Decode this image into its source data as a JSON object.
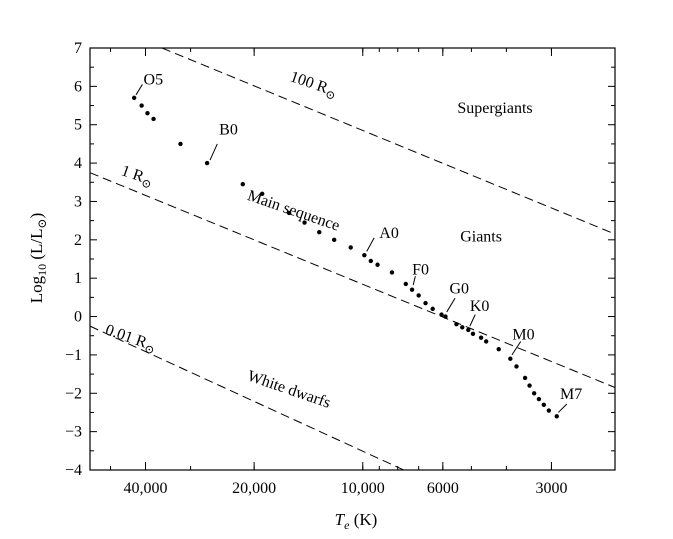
{
  "chart_data": {
    "type": "scatter",
    "title": "",
    "xlabel": "T",
    "xlabel_sub": "e",
    "xlabel_unit": " (K)",
    "ylabel": "Log",
    "ylabel_sub": "10",
    "ylabel_unit": " (L/L",
    "ylabel_sun": "⊙",
    "ylabel_close": ")",
    "xscale": "log-reversed",
    "xlim": [
      57000,
      2000
    ],
    "ylim": [
      -4,
      7
    ],
    "grid": false,
    "xticks": [
      {
        "value": 40000,
        "label": "40,000"
      },
      {
        "value": 20000,
        "label": "20,000"
      },
      {
        "value": 10000,
        "label": "10,000"
      },
      {
        "value": 6000,
        "label": "6000"
      },
      {
        "value": 3000,
        "label": "3000"
      }
    ],
    "yticks": [
      {
        "value": 7,
        "label": "7"
      },
      {
        "value": 6,
        "label": "6"
      },
      {
        "value": 5,
        "label": "5"
      },
      {
        "value": 4,
        "label": "4"
      },
      {
        "value": 3,
        "label": "3"
      },
      {
        "value": 2,
        "label": "2"
      },
      {
        "value": 1,
        "label": "1"
      },
      {
        "value": 0,
        "label": "0"
      },
      {
        "value": -1,
        "label": "−1"
      },
      {
        "value": -2,
        "label": "−2"
      },
      {
        "value": -3,
        "label": "−3"
      },
      {
        "value": -4,
        "label": "−4"
      }
    ],
    "series": [
      {
        "points": [
          {
            "x": 43000,
            "y": 5.7
          },
          {
            "x": 41000,
            "y": 5.5
          },
          {
            "x": 39500,
            "y": 5.3
          },
          {
            "x": 38000,
            "y": 5.15
          },
          {
            "x": 32000,
            "y": 4.5
          },
          {
            "x": 27000,
            "y": 4.0
          },
          {
            "x": 21500,
            "y": 3.45
          },
          {
            "x": 19000,
            "y": 3.2
          },
          {
            "x": 16000,
            "y": 2.7
          },
          {
            "x": 14500,
            "y": 2.45
          },
          {
            "x": 13200,
            "y": 2.2
          },
          {
            "x": 12000,
            "y": 2.0
          },
          {
            "x": 10800,
            "y": 1.8
          },
          {
            "x": 9900,
            "y": 1.6
          },
          {
            "x": 9500,
            "y": 1.45
          },
          {
            "x": 9100,
            "y": 1.35
          },
          {
            "x": 8300,
            "y": 1.15
          },
          {
            "x": 7600,
            "y": 0.85
          },
          {
            "x": 7300,
            "y": 0.7
          },
          {
            "x": 7000,
            "y": 0.55
          },
          {
            "x": 6700,
            "y": 0.35
          },
          {
            "x": 6400,
            "y": 0.2
          },
          {
            "x": 6050,
            "y": 0.05
          },
          {
            "x": 5900,
            "y": 0.0
          },
          {
            "x": 5500,
            "y": -0.2
          },
          {
            "x": 5300,
            "y": -0.28
          },
          {
            "x": 5100,
            "y": -0.35
          },
          {
            "x": 4950,
            "y": -0.45
          },
          {
            "x": 4700,
            "y": -0.55
          },
          {
            "x": 4550,
            "y": -0.65
          },
          {
            "x": 4200,
            "y": -0.85
          },
          {
            "x": 3900,
            "y": -1.1
          },
          {
            "x": 3750,
            "y": -1.3
          },
          {
            "x": 3550,
            "y": -1.6
          },
          {
            "x": 3450,
            "y": -1.8
          },
          {
            "x": 3350,
            "y": -2.0
          },
          {
            "x": 3250,
            "y": -2.15
          },
          {
            "x": 3150,
            "y": -2.3
          },
          {
            "x": 3050,
            "y": -2.45
          },
          {
            "x": 2900,
            "y": -2.6
          }
        ]
      }
    ],
    "radius_lines": [
      {
        "label": "100 R",
        "sun": "⊙",
        "x1": 36000,
        "y1": 7.0,
        "x2": 2000,
        "y2": 2.15,
        "tx": 16000,
        "ty": 6.15,
        "rot": 19
      },
      {
        "label": "1 R",
        "sun": "⊙",
        "x1": 57000,
        "y1": 3.75,
        "x2": 2000,
        "y2": -1.85,
        "tx": 47000,
        "ty": 3.7,
        "rot": 19
      },
      {
        "label": "0.01 R",
        "sun": "⊙",
        "x1": 57000,
        "y1": -0.25,
        "x2": 7700,
        "y2": -4.0,
        "tx": 52000,
        "ty": -0.45,
        "rot": 19
      }
    ],
    "annotations": [
      {
        "label": "O5",
        "x": 43000,
        "y": 5.7,
        "lx1": 42500,
        "ly1": 5.78,
        "lx2": 40800,
        "ly2": 6.05,
        "tx": 40500,
        "ty": 6.05
      },
      {
        "label": "B0",
        "x": 27000,
        "y": 4.0,
        "lx1": 26500,
        "ly1": 4.08,
        "lx2": 25300,
        "ly2": 4.5,
        "tx": 25000,
        "ty": 4.75
      },
      {
        "label": "A0",
        "x": 9900,
        "y": 1.6,
        "lx1": 9750,
        "ly1": 1.7,
        "lx2": 9300,
        "ly2": 2.05,
        "tx": 9000,
        "ty": 2.05
      },
      {
        "label": "F0",
        "x": 7300,
        "y": 0.7,
        "lx1": 7250,
        "ly1": 0.82,
        "lx2": 7150,
        "ly2": 1.05,
        "tx": 7300,
        "ty": 1.1
      },
      {
        "label": "G0",
        "x": 5900,
        "y": 0.0,
        "lx1": 5850,
        "ly1": 0.12,
        "lx2": 5550,
        "ly2": 0.48,
        "tx": 5750,
        "ty": 0.6
      },
      {
        "label": "K0",
        "x": 5100,
        "y": -0.35,
        "lx1": 5050,
        "ly1": -0.25,
        "lx2": 4880,
        "ly2": 0.05,
        "tx": 5050,
        "ty": 0.15
      },
      {
        "label": "M0",
        "x": 3900,
        "y": -1.1,
        "lx1": 3860,
        "ly1": -1.0,
        "lx2": 3650,
        "ly2": -0.65,
        "tx": 3850,
        "ty": -0.6
      },
      {
        "label": "M7",
        "x": 2900,
        "y": -2.6,
        "lx1": 2870,
        "ly1": -2.5,
        "lx2": 2720,
        "ly2": -2.28,
        "tx": 2840,
        "ty": -2.15
      }
    ],
    "regions": [
      {
        "label": "Supergiants",
        "x": 4300,
        "y": 5.3
      },
      {
        "label": "Giants",
        "x": 4700,
        "y": 1.95
      }
    ],
    "rotated_labels": [
      {
        "label": "Main sequence",
        "x": 21000,
        "y": 3.05,
        "rot": 19
      },
      {
        "label": "White dwarfs",
        "x": 21000,
        "y": -1.65,
        "rot": 19
      }
    ]
  }
}
